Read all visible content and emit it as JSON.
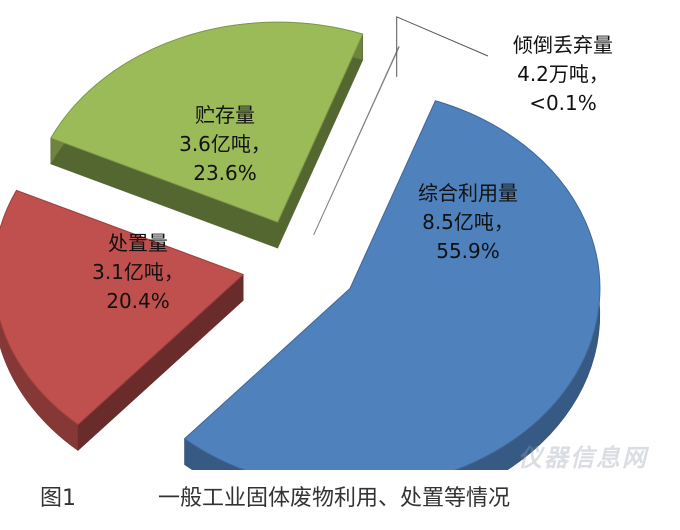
{
  "chart_data": {
    "type": "pie",
    "style": "exploded 3D",
    "slices": [
      {
        "name": "综合利用量",
        "amount": "8.5亿吨，",
        "percent_label": "55.9%",
        "value": 55.9,
        "color": "#4F81BD"
      },
      {
        "name": "处置量",
        "amount": "3.1亿吨，",
        "percent_label": "20.4%",
        "value": 20.4,
        "color": "#C0504D"
      },
      {
        "name": "贮存量",
        "amount": "3.6亿吨，",
        "percent_label": "23.6%",
        "value": 23.6,
        "color": "#9BBB59"
      },
      {
        "name": "倾倒丢弃量",
        "amount": "4.2万吨，",
        "percent_label": "<0.1%",
        "value": 0.03,
        "color": "#7F7F7F"
      }
    ]
  },
  "caption": {
    "figure_number": "图1",
    "title": "一般工业固体废物利用、处置等情况"
  },
  "watermark": "仪器信息网"
}
